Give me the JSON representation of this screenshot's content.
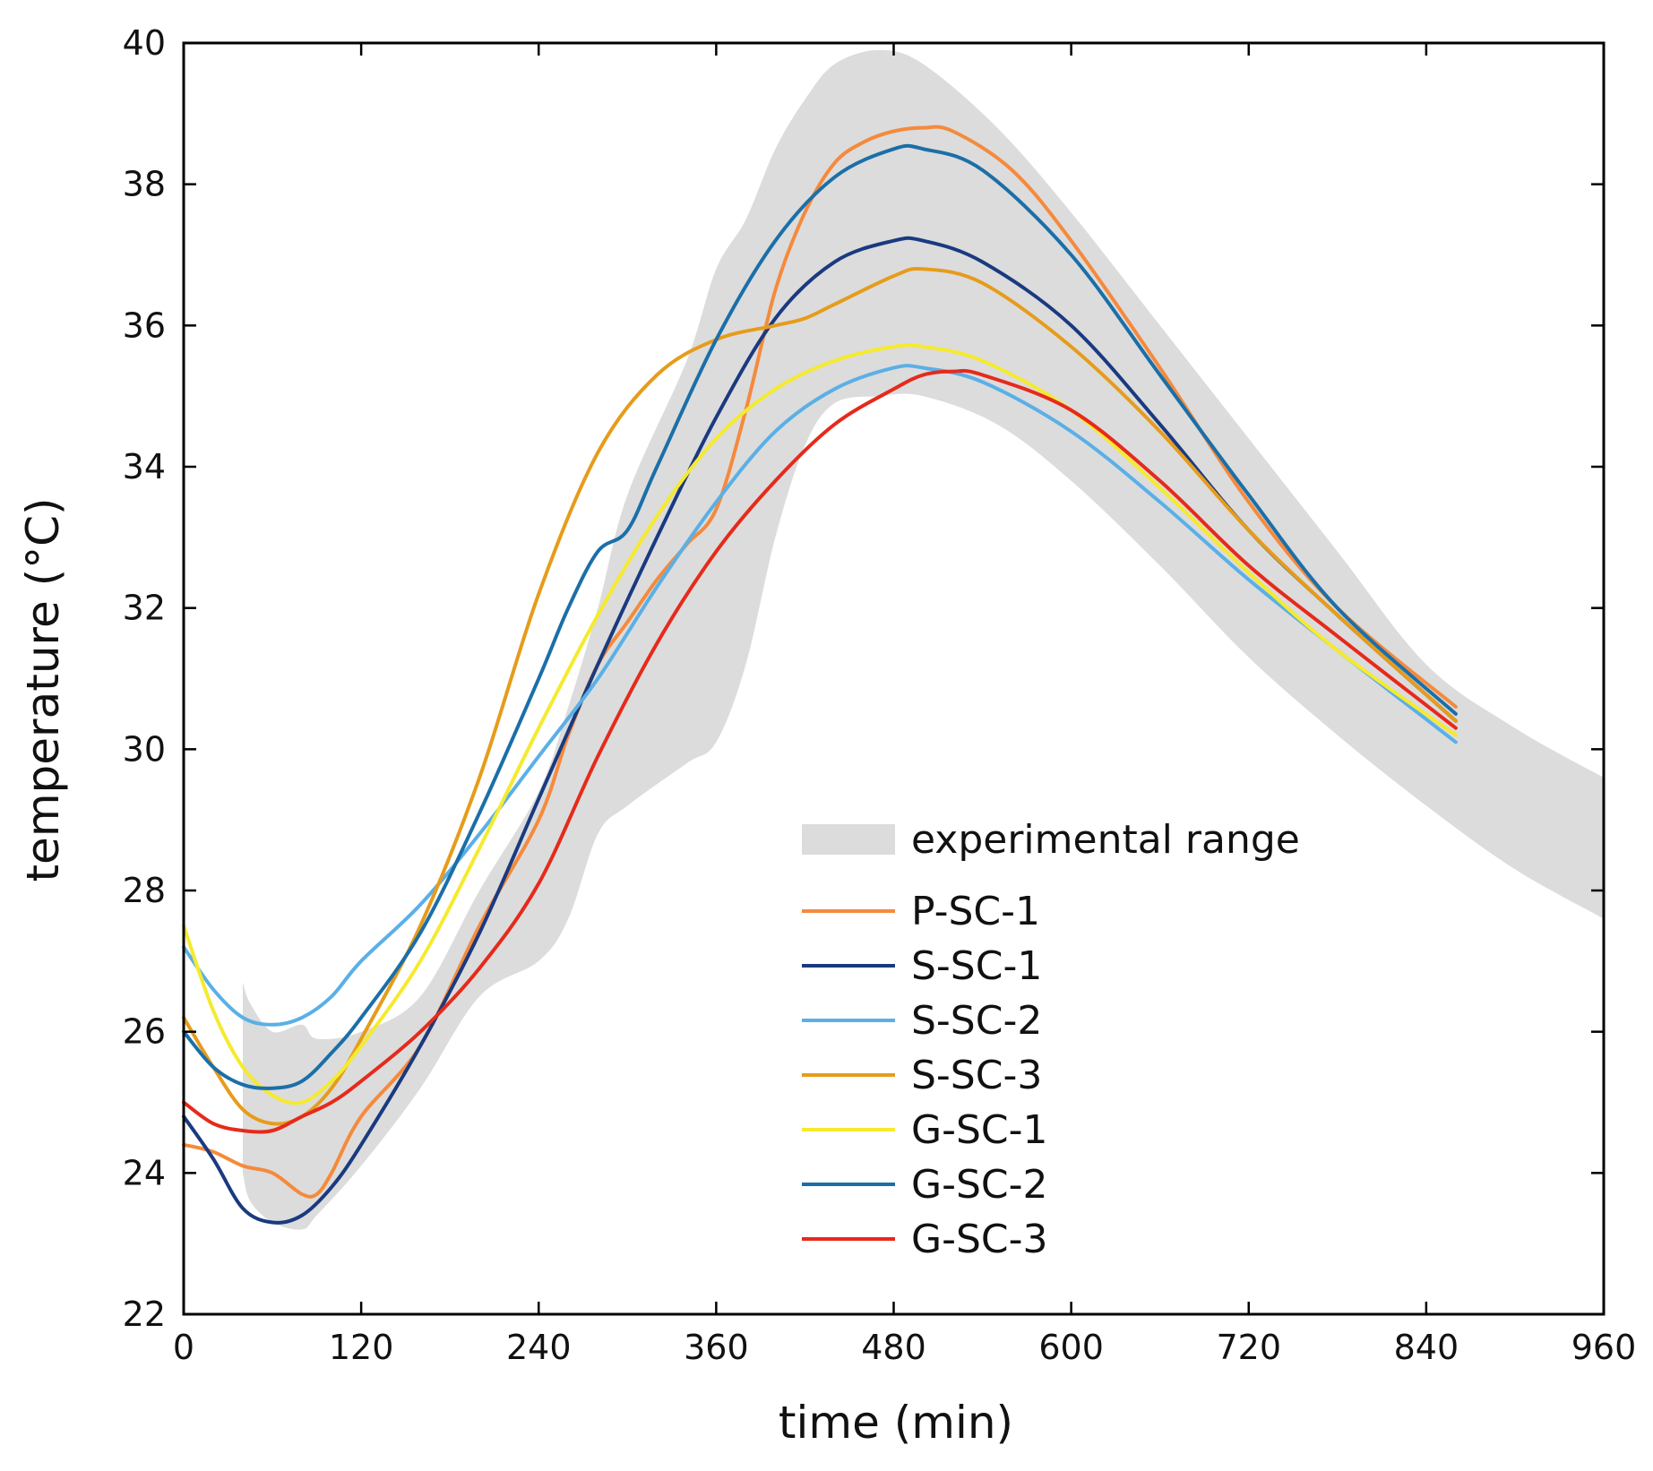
{
  "chart_data": {
    "type": "line",
    "title": "",
    "xlabel": "time (min)",
    "ylabel": "temperature (°C)",
    "xlim": [
      0,
      960
    ],
    "ylim": [
      22,
      40
    ],
    "xticks": [
      0,
      120,
      240,
      360,
      480,
      600,
      720,
      840,
      960
    ],
    "yticks": [
      22,
      24,
      26,
      28,
      30,
      32,
      34,
      36,
      38,
      40
    ],
    "grid": false,
    "legend_position": "lower-right",
    "band": {
      "name": "experimental range",
      "color": "#dcdcdc",
      "x": [
        40,
        45,
        60,
        80,
        90,
        120,
        160,
        200,
        240,
        260,
        280,
        300,
        340,
        360,
        380,
        400,
        420,
        440,
        470,
        500,
        550,
        600,
        660,
        720,
        780,
        840,
        900,
        960
      ],
      "lower": [
        24.0,
        23.6,
        23.3,
        23.2,
        23.4,
        24.1,
        25.2,
        26.5,
        27.0,
        27.6,
        28.8,
        29.2,
        29.8,
        30.1,
        31.2,
        33.0,
        34.3,
        34.9,
        35.0,
        35.0,
        34.6,
        33.8,
        32.6,
        31.3,
        30.2,
        29.2,
        28.3,
        27.6
      ],
      "upper": [
        26.7,
        26.4,
        26.0,
        26.1,
        25.9,
        26.0,
        26.5,
        28.0,
        29.4,
        30.6,
        32.0,
        33.6,
        35.5,
        36.8,
        37.5,
        38.5,
        39.2,
        39.7,
        39.9,
        39.7,
        38.8,
        37.6,
        36.0,
        34.4,
        32.8,
        31.2,
        30.3,
        29.6
      ]
    },
    "series": [
      {
        "name": "P-SC-1",
        "color": "#f58a3c",
        "x": [
          0,
          20,
          40,
          60,
          80,
          90,
          100,
          120,
          160,
          200,
          240,
          260,
          280,
          300,
          320,
          340,
          360,
          380,
          400,
          420,
          440,
          460,
          480,
          500,
          520,
          560,
          600,
          660,
          720,
          780,
          860
        ],
        "y": [
          24.4,
          24.3,
          24.1,
          24.0,
          23.7,
          23.7,
          24.0,
          24.8,
          25.8,
          27.5,
          29.0,
          30.2,
          31.2,
          31.8,
          32.4,
          32.9,
          33.4,
          34.8,
          36.5,
          37.6,
          38.3,
          38.6,
          38.75,
          38.8,
          38.75,
          38.2,
          37.2,
          35.4,
          33.5,
          32.0,
          30.6
        ]
      },
      {
        "name": "S-SC-1",
        "color": "#1a3a80",
        "x": [
          0,
          20,
          40,
          60,
          80,
          100,
          120,
          160,
          200,
          240,
          280,
          320,
          360,
          400,
          440,
          480,
          500,
          540,
          600,
          660,
          720,
          780,
          860
        ],
        "y": [
          24.8,
          24.2,
          23.5,
          23.3,
          23.4,
          23.8,
          24.4,
          25.8,
          27.4,
          29.3,
          31.2,
          33.0,
          34.7,
          36.1,
          36.9,
          37.2,
          37.2,
          36.9,
          36.0,
          34.6,
          33.1,
          31.9,
          30.4
        ]
      },
      {
        "name": "S-SC-2",
        "color": "#5ab0e6",
        "x": [
          0,
          20,
          40,
          60,
          80,
          100,
          120,
          160,
          200,
          240,
          280,
          320,
          360,
          400,
          440,
          480,
          500,
          540,
          600,
          660,
          720,
          780,
          860
        ],
        "y": [
          27.2,
          26.6,
          26.2,
          26.1,
          26.2,
          26.5,
          27.0,
          27.8,
          28.8,
          29.9,
          31.0,
          32.3,
          33.5,
          34.5,
          35.1,
          35.4,
          35.4,
          35.2,
          34.5,
          33.5,
          32.4,
          31.4,
          30.1
        ]
      },
      {
        "name": "S-SC-3",
        "color": "#e69c1b",
        "x": [
          0,
          20,
          40,
          60,
          80,
          100,
          120,
          160,
          200,
          240,
          280,
          320,
          360,
          400,
          420,
          440,
          480,
          500,
          540,
          600,
          660,
          720,
          780,
          860
        ],
        "y": [
          26.2,
          25.5,
          24.9,
          24.7,
          24.8,
          25.2,
          25.9,
          27.5,
          29.6,
          32.2,
          34.2,
          35.3,
          35.8,
          36.0,
          36.1,
          36.3,
          36.7,
          36.8,
          36.6,
          35.7,
          34.5,
          33.1,
          31.9,
          30.4
        ]
      },
      {
        "name": "G-SC-1",
        "color": "#f5ea2f",
        "x": [
          0,
          20,
          40,
          60,
          80,
          100,
          120,
          160,
          200,
          240,
          280,
          320,
          360,
          400,
          440,
          480,
          500,
          540,
          600,
          660,
          720,
          780,
          860
        ],
        "y": [
          27.5,
          26.3,
          25.5,
          25.1,
          25.0,
          25.3,
          25.8,
          27.0,
          28.6,
          30.3,
          31.9,
          33.3,
          34.4,
          35.1,
          35.5,
          35.7,
          35.7,
          35.5,
          34.8,
          33.7,
          32.5,
          31.4,
          30.2
        ]
      },
      {
        "name": "G-SC-2",
        "color": "#1b6fa8",
        "x": [
          0,
          20,
          40,
          60,
          80,
          100,
          120,
          160,
          200,
          240,
          260,
          280,
          300,
          320,
          360,
          400,
          440,
          480,
          500,
          540,
          600,
          660,
          720,
          780,
          860
        ],
        "y": [
          26.0,
          25.5,
          25.25,
          25.2,
          25.3,
          25.7,
          26.2,
          27.4,
          29.1,
          31.0,
          32.0,
          32.8,
          33.1,
          34.0,
          35.8,
          37.2,
          38.1,
          38.5,
          38.5,
          38.2,
          37.0,
          35.3,
          33.6,
          32.0,
          30.5
        ]
      },
      {
        "name": "G-SC-3",
        "color": "#e62a1b",
        "x": [
          0,
          20,
          40,
          60,
          80,
          100,
          120,
          160,
          200,
          240,
          280,
          320,
          360,
          400,
          440,
          480,
          500,
          520,
          540,
          600,
          660,
          720,
          780,
          860
        ],
        "y": [
          25.0,
          24.7,
          24.6,
          24.6,
          24.8,
          25.0,
          25.3,
          26.0,
          26.9,
          28.1,
          29.9,
          31.5,
          32.8,
          33.8,
          34.6,
          35.1,
          35.3,
          35.35,
          35.3,
          34.8,
          33.8,
          32.6,
          31.6,
          30.3
        ]
      }
    ]
  }
}
